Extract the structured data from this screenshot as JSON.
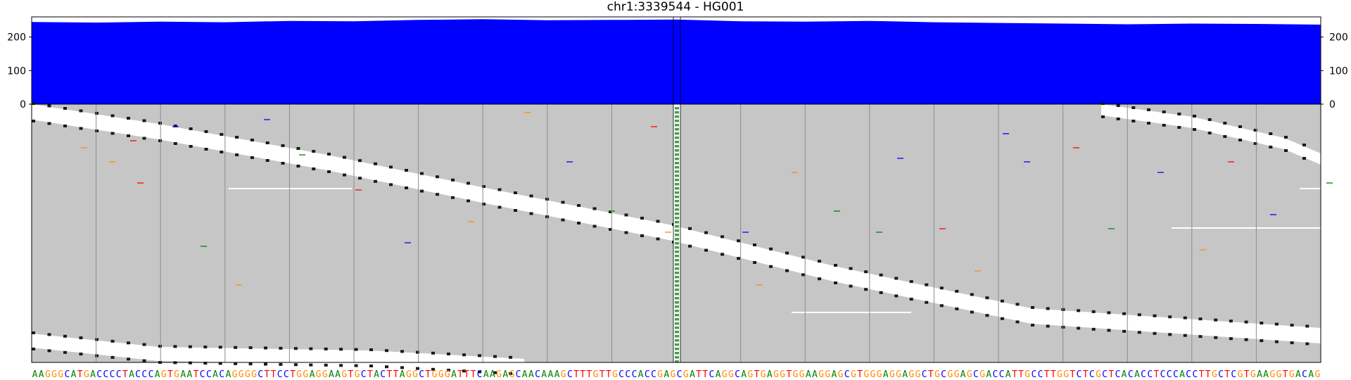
{
  "title": "chr1:3339544 - HG001",
  "colors": {
    "coverage": "#0000ff",
    "read_background": "#c6c6c6",
    "gap": "#ffffff",
    "clipped_marker": "#1a1a1a",
    "center_column": "#4a9e4a",
    "A": "#008000",
    "C": "#0000ff",
    "G": "#ff8c00",
    "T": "#ff0000",
    "grid": "#8c8c8c"
  },
  "chart_data": [
    {
      "type": "area",
      "name": "coverage",
      "ylim": [
        0,
        260
      ],
      "y_ticks": [
        "0",
        "100",
        "200"
      ],
      "position_range": [
        0,
        200
      ],
      "x": [
        0,
        10,
        20,
        30,
        40,
        50,
        60,
        70,
        80,
        90,
        100,
        110,
        120,
        130,
        140,
        150,
        160,
        170,
        180,
        190,
        200
      ],
      "values": [
        245,
        243,
        246,
        244,
        248,
        247,
        251,
        253,
        250,
        251,
        252,
        247,
        246,
        248,
        244,
        242,
        240,
        238,
        240,
        239,
        237
      ]
    },
    {
      "type": "heatmap",
      "name": "read pileup",
      "grid_line_positions": [
        10,
        20,
        30,
        40,
        50,
        60,
        70,
        80,
        90,
        100,
        110,
        120,
        130,
        140,
        150,
        160,
        170,
        180,
        190
      ],
      "center_position": 100
    }
  ],
  "reference_sequence": "AAGGGCATGACCCCTACCCAGTGAATCCACAGGGGCTTCCTGGAGGAAGTGCTACTTAGGCTGGGATTTCAAGAGCAACAAAGCTTTGTTGCCCACCGAGCGATTCAGGCAGTGAGGTGGAAGGAGCGTGGGAGGAGGCTGCGGAGCGACCATTGCCTTGGTCTCGCTCACACCTCCCACCTTGCTCGTGAAGGTGACAG",
  "right_y_ticks": [
    "0",
    "100",
    "200"
  ]
}
